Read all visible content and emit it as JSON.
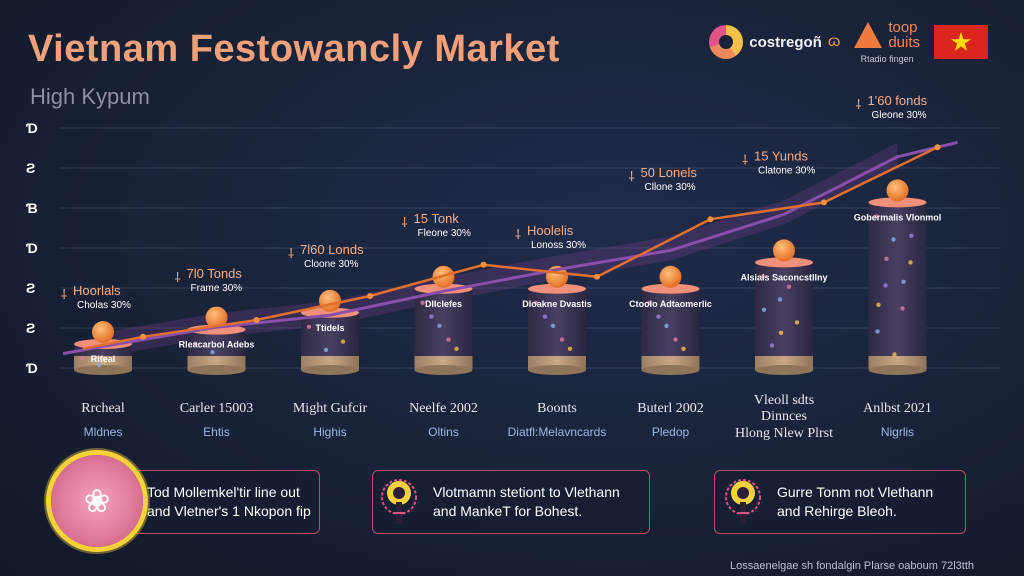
{
  "header": {
    "title": "Vietnam Festowancly Market",
    "subtitle": "High Kypum",
    "brand1": "costregoñ",
    "brand2_line1": "toop",
    "brand2_line2": "duits",
    "brand2_tag": "Rtadio fingen"
  },
  "chart_data": {
    "type": "bar",
    "title": "Vietnam Festowancly Market",
    "y_tick_labels": [
      "Ɗ",
      "Ƨ",
      "Ɓ",
      "Ɗ",
      "Ƨ",
      "Ƨ",
      "Ɗ"
    ],
    "categories": [
      "Rrcheal",
      "Carler 15003",
      "Might Gufcir",
      "Neelfe 2002",
      "Boonts",
      "Buterl 2002",
      "Vleoll sdts Dinnces",
      "Anlbst 2021"
    ],
    "category_subtitles": [
      "Mldnes",
      "Ehtis",
      "Highis",
      "Oltins",
      "Diatfl:Melavncards",
      "Pledop",
      "Hlong Nlew Plrst",
      "Nigrlis"
    ],
    "bar_labels": [
      "Rifeal",
      "Rleacarbol Adebs",
      "Ttidels",
      "Dllclefes",
      "Dloakne Dvastis",
      "Ctoolo Adtaomerlic",
      "Alsiais Saconcstllny",
      "Gobermalis Vlonmol"
    ],
    "bar_values": [
      1.0,
      1.6,
      2.3,
      3.3,
      3.3,
      3.3,
      4.4,
      6.9
    ],
    "series": [
      {
        "name": "",
        "values": [
          1.3,
          2.0,
          3.0,
          4.3,
          3.8,
          6.2,
          6.9,
          9.2
        ]
      },
      {
        "name": "",
        "values": [
          0.9,
          1.7,
          2.2,
          3.2,
          4.1,
          4.9,
          6.4,
          8.8
        ]
      }
    ],
    "annotations": [
      {
        "value": "Hoorlals",
        "sub": "Cholas 30%"
      },
      {
        "value": "7l0 Tonds",
        "sub": "Frame 30%"
      },
      {
        "value": "7l60 Londs",
        "sub": "Cloone 30%"
      },
      {
        "value": "15 Tonk",
        "sub": "Fleone 30%"
      },
      {
        "value": "Hoolelis",
        "sub": "Lonoss 30%"
      },
      {
        "value": "50 Lonels",
        "sub": "Cllone 30%"
      },
      {
        "value": "15 Yunds",
        "sub": "Clatone 30%"
      },
      {
        "value": "1'60 fonds",
        "sub": "Gleone 30%"
      }
    ],
    "colors": {
      "bar_top": "#f0907a",
      "bar_body": "#3c3452",
      "bar_base": "#b89a78",
      "line": "#e0702c",
      "trend": "#8a4fa8",
      "ball": "#f4903a"
    }
  },
  "cards": [
    {
      "text": "Tod Mollemkel'tir line out\nand Vletner's 1 Nkopon fip",
      "icon": "lotus-icon"
    },
    {
      "text": "Vlotmamn stetiont to Vlethann\nand MankeT for Bohest.",
      "icon": "person-icon"
    },
    {
      "text": "Gurre Tonm not Vlethann\nand Rehirge Bleoh.",
      "icon": "person-icon"
    }
  ],
  "footer": "Lossaenelgae sh fondalgin Plarse oaboum 72l3tth"
}
